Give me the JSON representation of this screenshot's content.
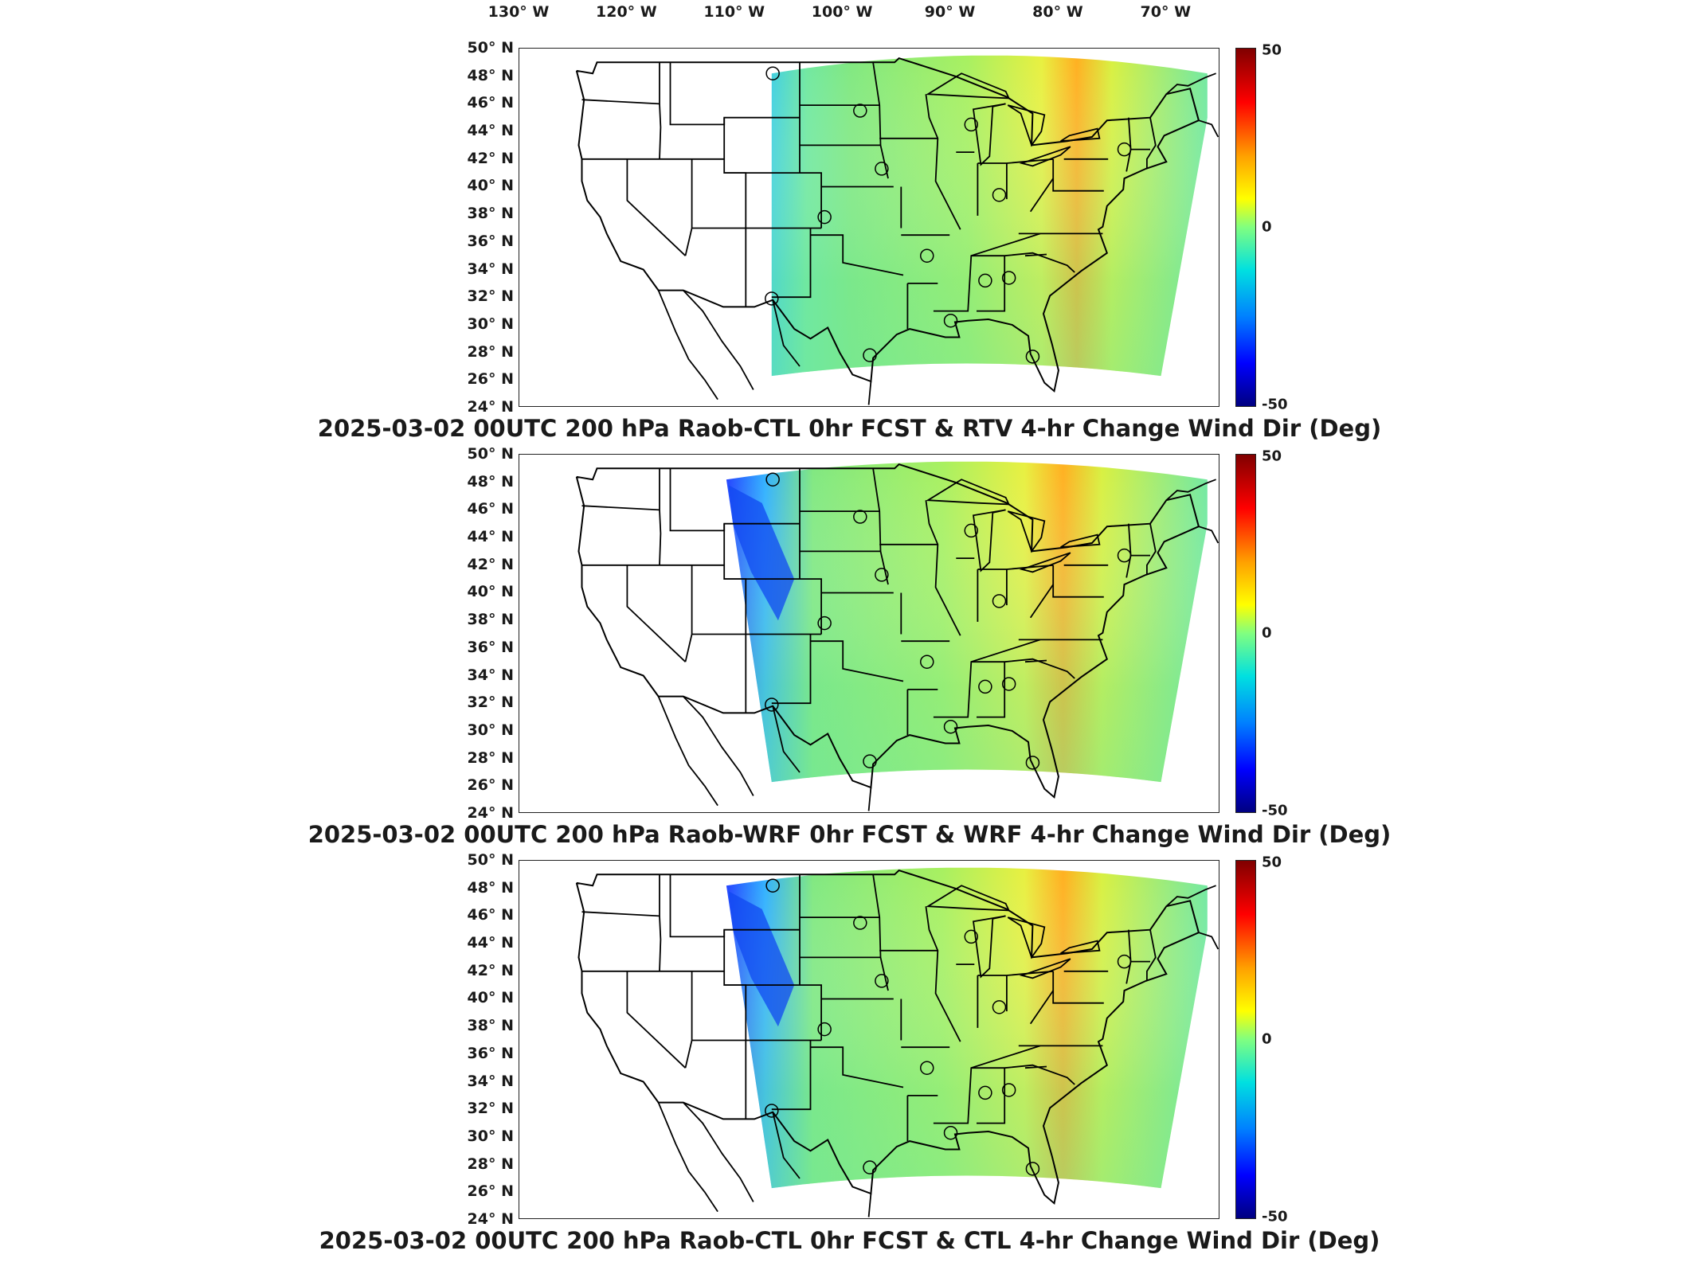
{
  "map": {
    "lon_labels": [
      "130° W",
      "120° W",
      "110° W",
      "100° W",
      "90° W",
      "80° W",
      "70° W"
    ],
    "lat_labels": [
      "50° N",
      "48° N",
      "46° N",
      "44° N",
      "42° N",
      "40° N",
      "38° N",
      "36° N",
      "34° N",
      "32° N",
      "30° N",
      "28° N",
      "26° N",
      "24° N"
    ],
    "lat_range": [
      24,
      50
    ],
    "lon_range": [
      -130,
      -65
    ]
  },
  "colorbar": {
    "max_label": "50",
    "mid_label": "0",
    "min_label": "-50",
    "range": [
      -50,
      50
    ],
    "colors": [
      "#000080",
      "#0000ff",
      "#0080ff",
      "#00e0e0",
      "#80ff80",
      "#ffff00",
      "#ffa000",
      "#ff0000",
      "#800000"
    ]
  },
  "stations": [
    {
      "lon": -106.5,
      "lat": 48.2
    },
    {
      "lon": -98.4,
      "lat": 45.5
    },
    {
      "lon": -88.1,
      "lat": 44.5
    },
    {
      "lon": -96.4,
      "lat": 41.3
    },
    {
      "lon": -73.9,
      "lat": 42.7
    },
    {
      "lon": -101.7,
      "lat": 37.8
    },
    {
      "lon": -85.5,
      "lat": 39.4
    },
    {
      "lon": -92.2,
      "lat": 35.0
    },
    {
      "lon": -86.8,
      "lat": 33.2
    },
    {
      "lon": -84.6,
      "lat": 33.4
    },
    {
      "lon": -106.6,
      "lat": 31.9
    },
    {
      "lon": -90.0,
      "lat": 30.3
    },
    {
      "lon": -97.5,
      "lat": 27.8
    },
    {
      "lon": -82.4,
      "lat": 27.7
    }
  ],
  "panels": [
    {
      "title": "2025-03-02 00UTC 200 hPa Raob-CTL 0hr FCST & RTV 4-hr Change Wind Dir (Deg)"
    },
    {
      "title": "2025-03-02 00UTC 200 hPa Raob-WRF 0hr FCST & WRF 4-hr Change Wind Dir (Deg)"
    },
    {
      "title": "2025-03-02 00UTC 200 hPa Raob-CTL 0hr FCST & CTL 4-hr Change Wind Dir (Deg)"
    }
  ]
}
